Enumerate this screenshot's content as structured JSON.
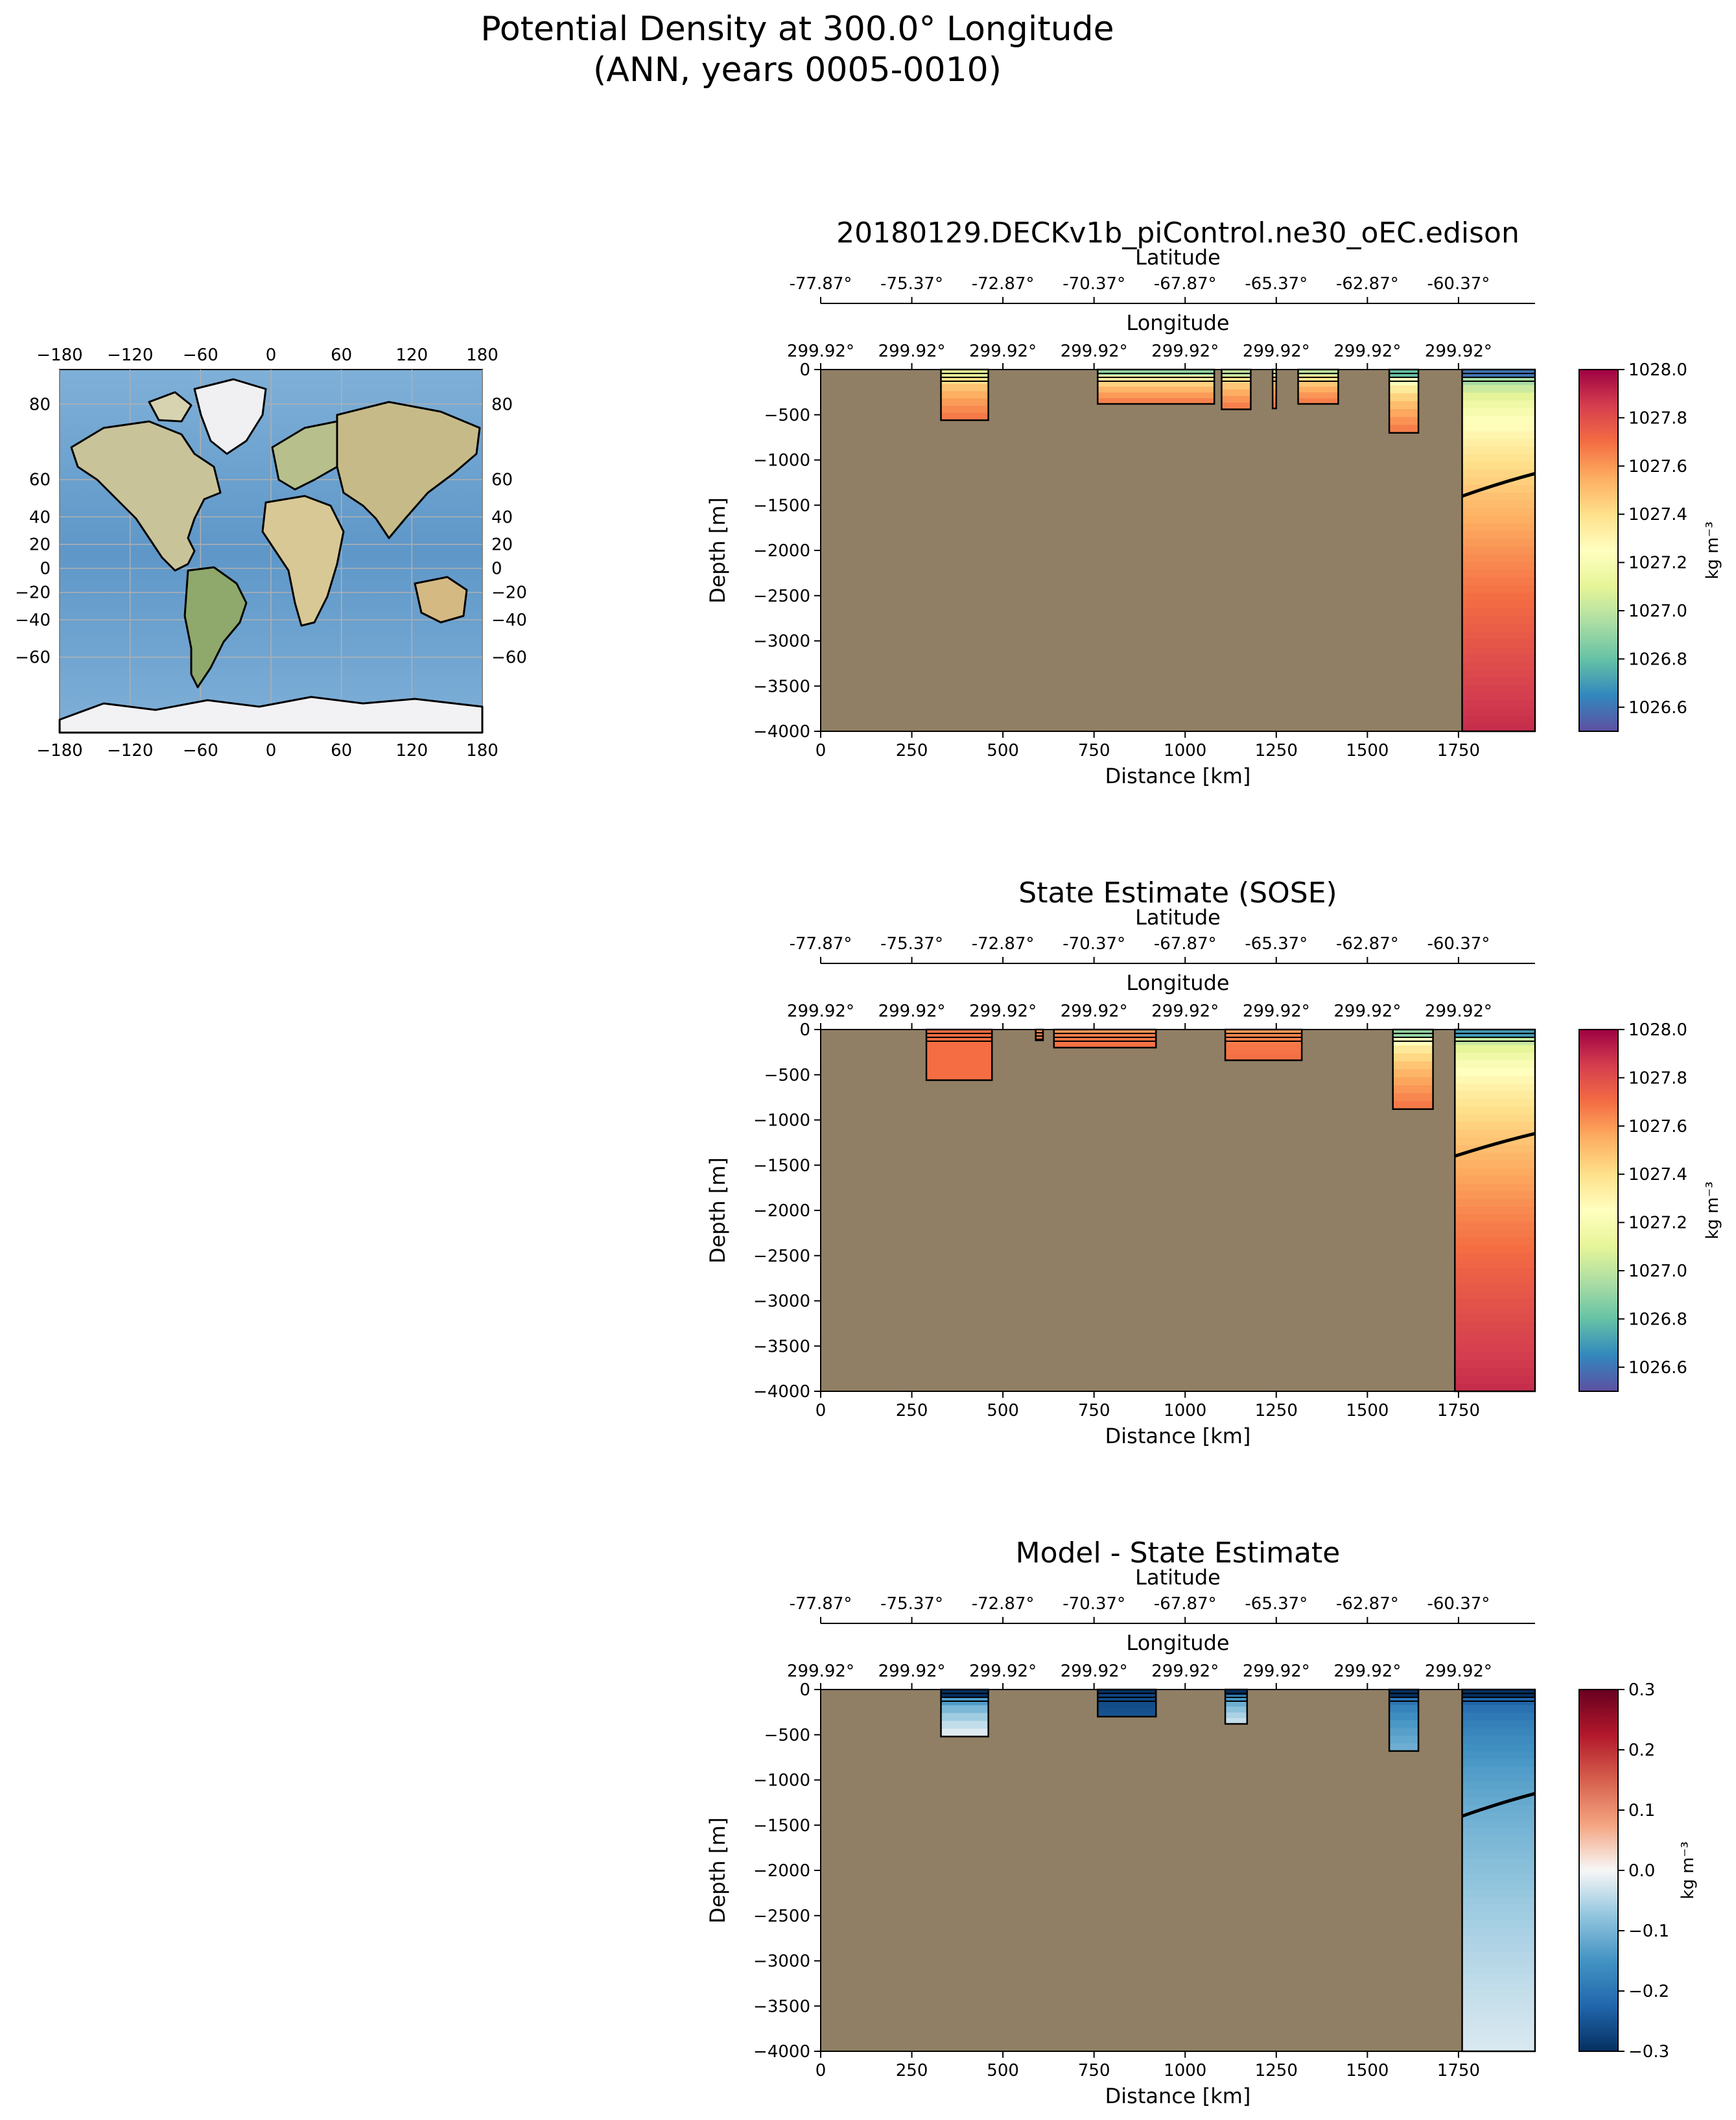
{
  "figure": {
    "title_line1": "Potential Density at 300.0° Longitude",
    "title_line2": "(ANN, years 0005-0010)"
  },
  "colors": {
    "land": "#907f64",
    "ocean_map": "#6fa6d3"
  },
  "map": {
    "lon_ticks": [
      "−180",
      "−120",
      "−60",
      "0",
      "60",
      "120",
      "180"
    ],
    "lat_ticks": [
      "80",
      "60",
      "40",
      "20",
      "0",
      "−20",
      "−40",
      "−60"
    ]
  },
  "chart_data": [
    {
      "type": "heatmap",
      "title": "20180129.DECKv1b_piControl.ne30_oEC.edison",
      "xlabel": "Distance [km]",
      "ylabel": "Depth [m]",
      "top_axis1_label": "Longitude",
      "top_axis2_label": "Latitude",
      "x_ticks": [
        "0",
        "250",
        "500",
        "750",
        "1000",
        "1250",
        "1500",
        "1750"
      ],
      "x_tick_values": [
        0,
        250,
        500,
        750,
        1000,
        1250,
        1500,
        1750
      ],
      "xlim": [
        0,
        1960
      ],
      "y_ticks": [
        "0",
        "−500",
        "−1000",
        "−1500",
        "−2000",
        "−2500",
        "−3000",
        "−3500",
        "−4000"
      ],
      "ylim": [
        -4000,
        0
      ],
      "longitude_ticks": [
        "299.92°",
        "299.92°",
        "299.92°",
        "299.92°",
        "299.92°",
        "299.92°",
        "299.92°",
        "299.92°"
      ],
      "latitude_ticks": [
        "-77.87°",
        "-75.37°",
        "-72.87°",
        "-70.37°",
        "-67.87°",
        "-65.37°",
        "-62.87°",
        "-60.37°"
      ],
      "colorbar": {
        "ticks": [
          "1028.0",
          "1027.8",
          "1027.6",
          "1027.4",
          "1027.2",
          "1027.0",
          "1026.8",
          "1026.6"
        ],
        "tick_values": [
          1028.0,
          1027.8,
          1027.6,
          1027.4,
          1027.2,
          1027.0,
          1026.8,
          1026.6
        ],
        "range": [
          1026.5,
          1028.0
        ],
        "label": "kg m⁻³",
        "colormap": "Spectral_r"
      },
      "ocean_regions": [
        {
          "x": [
            330,
            460
          ],
          "bottom": -560,
          "surface_value": 1027.1,
          "deep_value": 1027.7
        },
        {
          "x": [
            760,
            1080
          ],
          "bottom": -380,
          "surface_value": 1026.9,
          "deep_value": 1027.7
        },
        {
          "x": [
            1100,
            1180
          ],
          "bottom": -440,
          "surface_value": 1027.0,
          "deep_value": 1027.7
        },
        {
          "x": [
            1240,
            1250
          ],
          "bottom": -430,
          "surface_value": 1027.2,
          "deep_value": 1027.7
        },
        {
          "x": [
            1310,
            1420
          ],
          "bottom": -380,
          "surface_value": 1027.0,
          "deep_value": 1027.7
        },
        {
          "x": [
            1560,
            1640
          ],
          "bottom": -700,
          "surface_value": 1026.8,
          "deep_value": 1027.7
        },
        {
          "x": [
            1760,
            1960
          ],
          "bottom": -4000,
          "surface_value": 1026.6,
          "deep_value": 1027.9
        }
      ]
    },
    {
      "type": "heatmap",
      "title": "State Estimate (SOSE)",
      "xlabel": "Distance [km]",
      "ylabel": "Depth [m]",
      "top_axis1_label": "Longitude",
      "top_axis2_label": "Latitude",
      "x_ticks": [
        "0",
        "250",
        "500",
        "750",
        "1000",
        "1250",
        "1500",
        "1750"
      ],
      "x_tick_values": [
        0,
        250,
        500,
        750,
        1000,
        1250,
        1500,
        1750
      ],
      "xlim": [
        0,
        1960
      ],
      "y_ticks": [
        "0",
        "−500",
        "−1000",
        "−1500",
        "−2000",
        "−2500",
        "−3000",
        "−3500",
        "−4000"
      ],
      "ylim": [
        -4000,
        0
      ],
      "longitude_ticks": [
        "299.92°",
        "299.92°",
        "299.92°",
        "299.92°",
        "299.92°",
        "299.92°",
        "299.92°",
        "299.92°"
      ],
      "latitude_ticks": [
        "-77.87°",
        "-75.37°",
        "-72.87°",
        "-70.37°",
        "-67.87°",
        "-65.37°",
        "-62.87°",
        "-60.37°"
      ],
      "colorbar": {
        "ticks": [
          "1028.0",
          "1027.8",
          "1027.6",
          "1027.4",
          "1027.2",
          "1027.0",
          "1026.8",
          "1026.6"
        ],
        "tick_values": [
          1028.0,
          1027.8,
          1027.6,
          1027.4,
          1027.2,
          1027.0,
          1026.8,
          1026.6
        ],
        "range": [
          1026.5,
          1028.0
        ],
        "label": "kg m⁻³",
        "colormap": "Spectral_r"
      },
      "ocean_regions": [
        {
          "x": [
            290,
            470
          ],
          "bottom": -560,
          "surface_value": 1027.7,
          "deep_value": 1027.7
        },
        {
          "x": [
            590,
            610
          ],
          "bottom": -120,
          "surface_value": 1027.6,
          "deep_value": 1027.7
        },
        {
          "x": [
            640,
            920
          ],
          "bottom": -200,
          "surface_value": 1027.6,
          "deep_value": 1027.7
        },
        {
          "x": [
            1110,
            1320
          ],
          "bottom": -340,
          "surface_value": 1027.6,
          "deep_value": 1027.7
        },
        {
          "x": [
            1570,
            1680
          ],
          "bottom": -880,
          "surface_value": 1026.9,
          "deep_value": 1027.7
        },
        {
          "x": [
            1740,
            1960
          ],
          "bottom": -4000,
          "surface_value": 1026.7,
          "deep_value": 1027.9
        }
      ]
    },
    {
      "type": "heatmap",
      "title": "Model - State Estimate",
      "xlabel": "Distance [km]",
      "ylabel": "Depth [m]",
      "top_axis1_label": "Longitude",
      "top_axis2_label": "Latitude",
      "x_ticks": [
        "0",
        "250",
        "500",
        "750",
        "1000",
        "1250",
        "1500",
        "1750"
      ],
      "x_tick_values": [
        0,
        250,
        500,
        750,
        1000,
        1250,
        1500,
        1750
      ],
      "xlim": [
        0,
        1960
      ],
      "y_ticks": [
        "0",
        "−500",
        "−1000",
        "−1500",
        "−2000",
        "−2500",
        "−3000",
        "−3500",
        "−4000"
      ],
      "ylim": [
        -4000,
        0
      ],
      "longitude_ticks": [
        "299.92°",
        "299.92°",
        "299.92°",
        "299.92°",
        "299.92°",
        "299.92°",
        "299.92°",
        "299.92°"
      ],
      "latitude_ticks": [
        "-77.87°",
        "-75.37°",
        "-72.87°",
        "-70.37°",
        "-67.87°",
        "-65.37°",
        "-62.87°",
        "-60.37°"
      ],
      "colorbar": {
        "ticks": [
          "0.3",
          "0.2",
          "0.1",
          "0.0",
          "−0.1",
          "−0.2",
          "−0.3"
        ],
        "tick_values": [
          0.3,
          0.2,
          0.1,
          0.0,
          -0.1,
          -0.2,
          -0.3
        ],
        "range": [
          -0.3,
          0.3
        ],
        "label": "kg m⁻³",
        "colormap": "RdBu_r"
      },
      "ocean_regions": [
        {
          "x": [
            330,
            460
          ],
          "bottom": -520,
          "surface_value": -0.3,
          "deep_value": 0.0
        },
        {
          "x": [
            760,
            920
          ],
          "bottom": -300,
          "surface_value": -0.3,
          "deep_value": -0.25
        },
        {
          "x": [
            1110,
            1170
          ],
          "bottom": -380,
          "surface_value": -0.3,
          "deep_value": -0.02
        },
        {
          "x": [
            1560,
            1640
          ],
          "bottom": -680,
          "surface_value": -0.3,
          "deep_value": -0.1
        },
        {
          "x": [
            1760,
            1960
          ],
          "bottom": -4000,
          "surface_value": -0.3,
          "deep_value": -0.02
        }
      ]
    }
  ]
}
